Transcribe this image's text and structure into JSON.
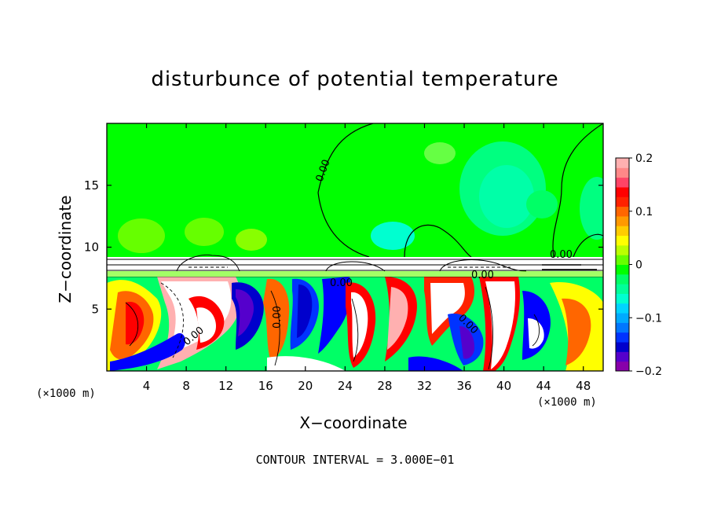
{
  "chart_data": {
    "type": "heatmap",
    "title": "disturbunce of potential temperature",
    "xlabel": "X−coordinate",
    "ylabel": "Z−coordinate",
    "x_unit": "(×1000 m)",
    "y_unit": "(×1000 m)",
    "xlim": [
      0,
      50
    ],
    "ylim": [
      0,
      20
    ],
    "x_ticks": [
      "4",
      "8",
      "12",
      "16",
      "20",
      "24",
      "28",
      "32",
      "36",
      "40",
      "44",
      "48"
    ],
    "y_ticks": [
      "5",
      "10",
      "15"
    ],
    "colorbar": {
      "range": [
        -0.2,
        0.2
      ],
      "tick_labels": [
        "0.2",
        "0.1",
        "0",
        "−0.1",
        "−0.2"
      ],
      "colors": [
        "#8800aa",
        "#5500cc",
        "#0000cc",
        "#0033ff",
        "#0077ff",
        "#00aaff",
        "#00d4ff",
        "#00ffd0",
        "#00ff99",
        "#00ff66",
        "#00ff00",
        "#66ff00",
        "#bbff00",
        "#ffff00",
        "#ffcc00",
        "#ff9900",
        "#ff6600",
        "#ff2200",
        "#ff0000",
        "#ff4466",
        "#ff8888",
        "#ffb0b0"
      ]
    },
    "contour_labels": [
      "0.00",
      "0.00",
      "0.00",
      "0.00",
      "0.00",
      "0.00",
      "0.00"
    ],
    "footer": "CONTOUR INTERVAL = 3.000E−01"
  }
}
